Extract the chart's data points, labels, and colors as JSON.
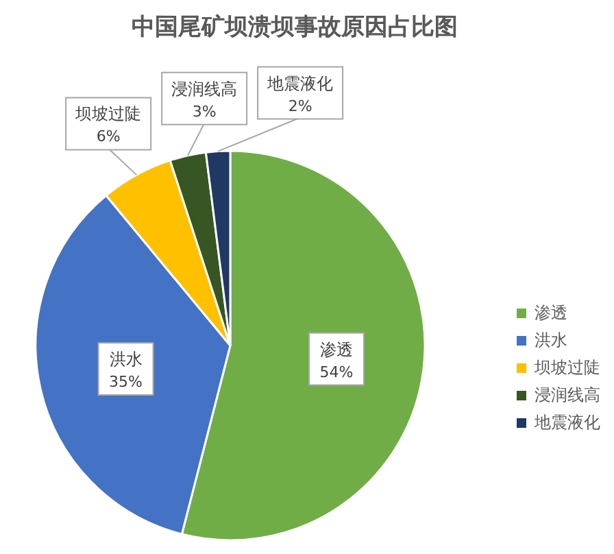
{
  "chart_data": {
    "type": "pie",
    "title": "中国尾矿坝溃坝事故原因占比图",
    "categories": [
      "渗透",
      "洪水",
      "坝坡过陡",
      "浸润线高",
      "地震液化"
    ],
    "values": [
      54,
      35,
      6,
      3,
      2
    ],
    "value_labels": [
      "54%",
      "35%",
      "6%",
      "3%",
      "2%"
    ],
    "colors": [
      "#70ad47",
      "#4472c4",
      "#ffc000",
      "#375623",
      "#203864"
    ],
    "legend": "right"
  }
}
